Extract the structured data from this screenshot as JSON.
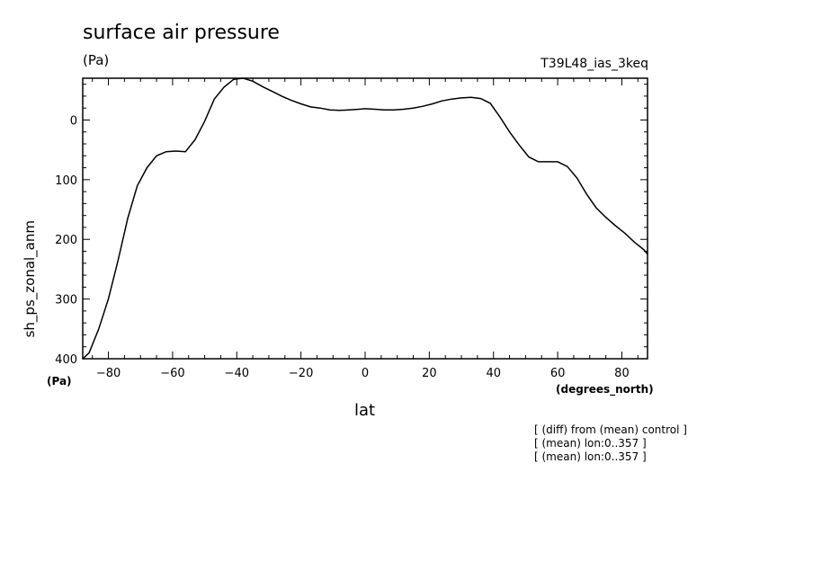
{
  "chart_data": {
    "type": "line",
    "title": "surface air pressure",
    "units": "(Pa)",
    "run_name": "T39L48_ias_3keq",
    "ylabel": "sh_ps_zonal_anm",
    "y_units": "(Pa)",
    "xlabel": "lat",
    "x_units": "(degrees_north)",
    "xlim": [
      -88,
      88
    ],
    "ylim": [
      400,
      -70
    ],
    "y_inverted": true,
    "x_ticks": [
      -80,
      -60,
      -40,
      -20,
      0,
      20,
      40,
      60,
      80
    ],
    "y_ticks": [
      400,
      300,
      200,
      100,
      0
    ],
    "grid": false,
    "series": [
      {
        "x": [
          -88,
          -86,
          -83,
          -80,
          -77,
          -74,
          -71,
          -68,
          -65,
          -62,
          -59,
          -56,
          -53,
          -50,
          -47,
          -44,
          -41,
          -38,
          -35,
          -32,
          -29,
          -26,
          -23,
          -20,
          -17,
          -14,
          -11,
          -8,
          -5,
          -2,
          0,
          3,
          6,
          9,
          12,
          15,
          18,
          21,
          24,
          27,
          30,
          33,
          36,
          39,
          42,
          45,
          48,
          51,
          54,
          57,
          60,
          63,
          66,
          69,
          72,
          75,
          78,
          81,
          84,
          87,
          88
        ],
        "y": [
          400,
          390,
          350,
          300,
          235,
          165,
          110,
          80,
          60,
          53,
          52,
          53,
          33,
          2,
          -35,
          -55,
          -68,
          -70,
          -65,
          -56,
          -48,
          -40,
          -33,
          -27,
          -22,
          -20,
          -17,
          -16,
          -17,
          -18,
          -19,
          -18,
          -17,
          -17,
          -18,
          -20,
          -23,
          -27,
          -32,
          -35,
          -37,
          -38,
          -36,
          -28,
          -5,
          20,
          42,
          62,
          70,
          70,
          70,
          78,
          97,
          124,
          147,
          163,
          177,
          190,
          205,
          218,
          225
        ]
      }
    ]
  },
  "notes": [
    "[ (diff) from (mean) control ]",
    "[ (mean) lon:0..357 ]",
    "[ (mean) lon:0..357 ]"
  ]
}
